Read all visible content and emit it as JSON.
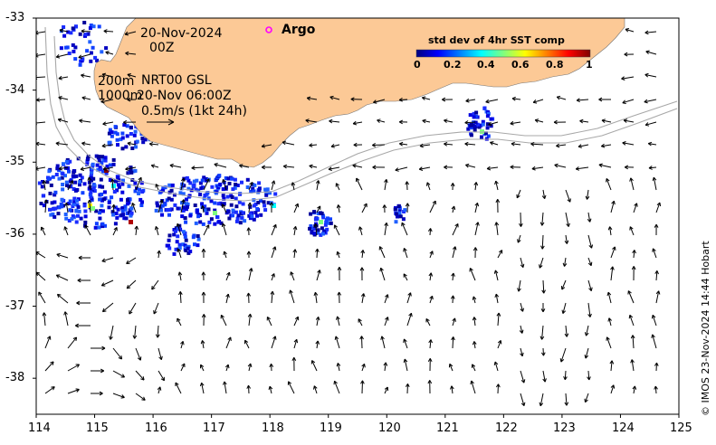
{
  "header": {
    "date": "20-Nov-2024",
    "hour": "00Z",
    "argo_label": "Argo"
  },
  "contours": {
    "line1_depth": "200m",
    "line1_text": "NRT00 GSL",
    "line2_depth": "1000m",
    "line2_text": "20-Nov 06:00Z",
    "scale_text": "0.5m/s (1kt 24h)"
  },
  "colorbar": {
    "title": "std dev of 4hr SST comp",
    "ticks": [
      "0",
      "0.2",
      "0.4",
      "0.6",
      "0.8",
      "1"
    ],
    "range": [
      0,
      1
    ],
    "colors": [
      "#00007f",
      "#0000ff",
      "#007fff",
      "#00ffff",
      "#7fff7f",
      "#ffff00",
      "#ff7f00",
      "#ff0000",
      "#7f0000"
    ]
  },
  "axes": {
    "x_ticks": [
      "114",
      "115",
      "116",
      "117",
      "118",
      "119",
      "120",
      "121",
      "122",
      "123",
      "124",
      "125"
    ],
    "y_ticks": [
      "-33",
      "-34",
      "-35",
      "-36",
      "-37",
      "-38"
    ],
    "lon_range": [
      114,
      125
    ],
    "lat_range": [
      -33,
      -38.5
    ]
  },
  "colors": {
    "land": "#fcc996",
    "argo_marker": "#ff00ff",
    "vectors": "#000000",
    "isobaths": "#a8a8a8"
  },
  "credit": "© IMOS 23-Nov-2024 14:44 Hobart"
}
